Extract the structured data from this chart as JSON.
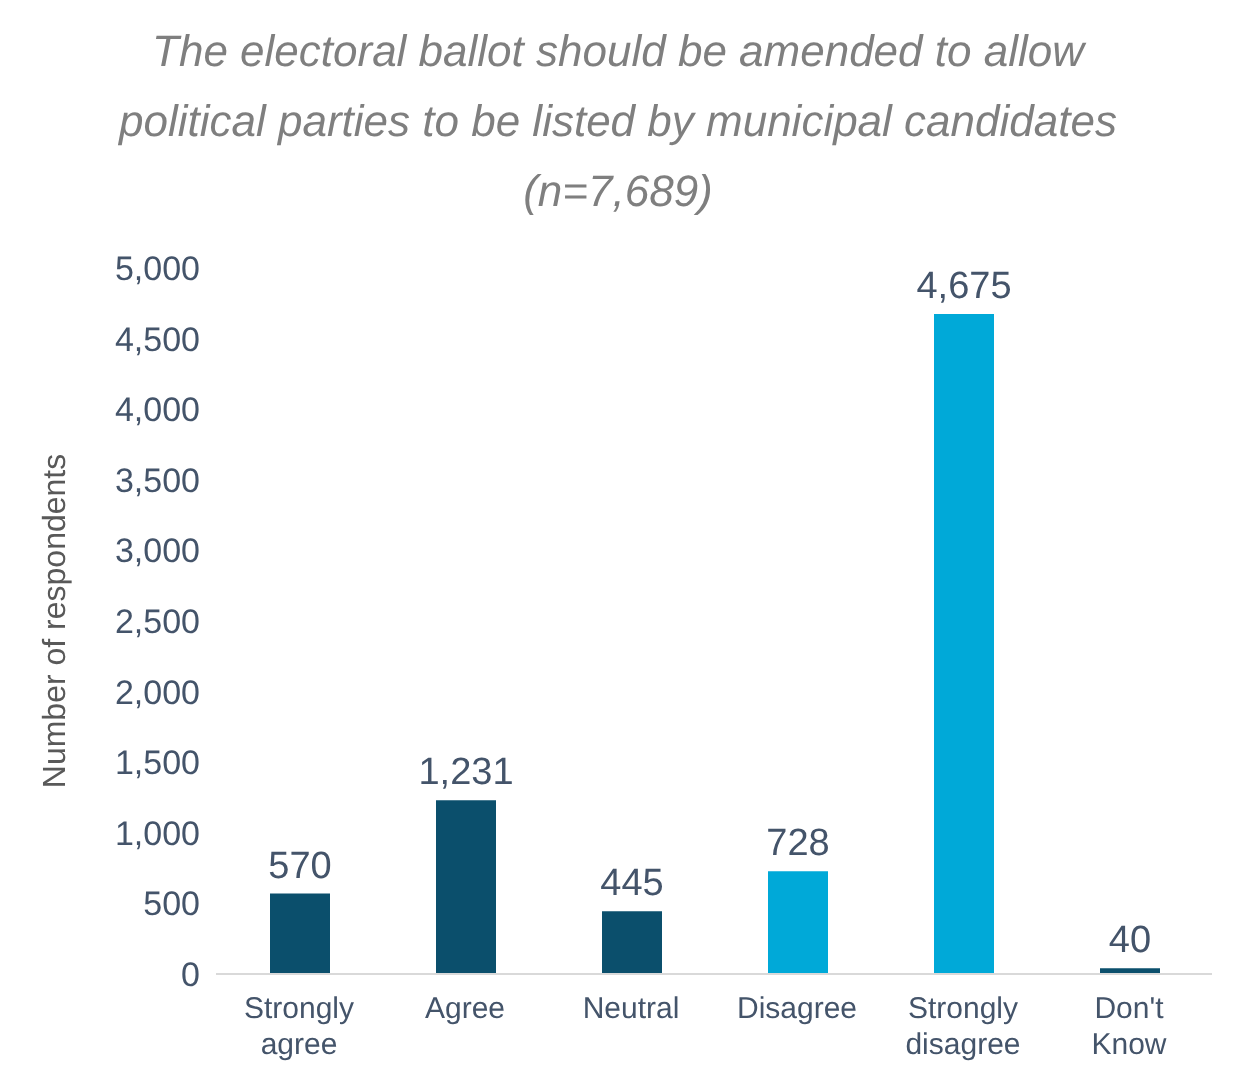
{
  "chart_data": {
    "type": "bar",
    "title": "The electoral ballot should be amended to allow political parties to be listed by municipal candidates (n=7,689)",
    "ylabel": "Number of respondents",
    "categories": [
      "Strongly agree",
      "Agree",
      "Neutral",
      "Disagree",
      "Strongly disagree",
      "Don't Know"
    ],
    "values": [
      570,
      1231,
      445,
      728,
      4675,
      40
    ],
    "value_labels": [
      "570",
      "1,231",
      "445",
      "728",
      "4,675",
      "40"
    ],
    "colors": [
      "#0b4f6c",
      "#0b4f6c",
      "#0b4f6c",
      "#00a9d8",
      "#00a9d8",
      "#0b4f6c"
    ],
    "ylim": [
      0,
      5000
    ],
    "yticks": [
      0,
      500,
      {
        "value": 1000,
        "label": "1,000"
      },
      {
        "value": 1500,
        "label": "1,500"
      },
      {
        "value": 2000,
        "label": "2,000"
      },
      {
        "value": 2500,
        "label": "2,500"
      },
      {
        "value": 3000,
        "label": "3,000"
      },
      {
        "value": 3500,
        "label": "3,500"
      },
      {
        "value": 4000,
        "label": "4,000"
      },
      {
        "value": 4500,
        "label": "4,500"
      },
      {
        "value": 5000,
        "label": "5,000"
      }
    ]
  }
}
